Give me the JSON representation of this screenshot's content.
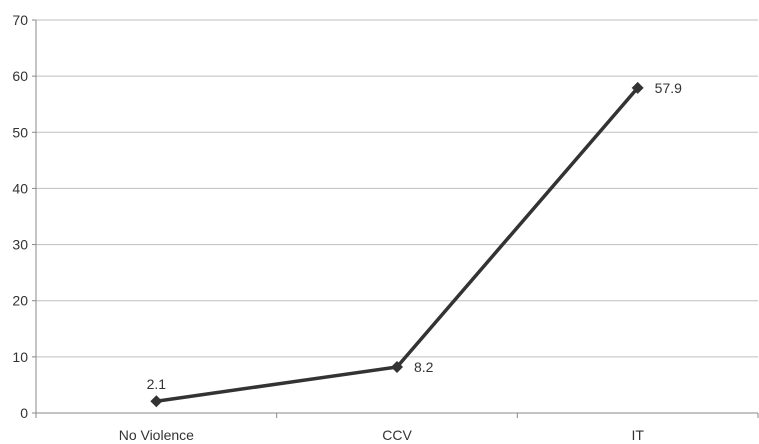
{
  "chart_data": {
    "type": "line",
    "categories": [
      "No Violence",
      "CCV",
      "IT"
    ],
    "series": [
      {
        "values": [
          2.1,
          8.2,
          57.9
        ],
        "data_labels": [
          "2.1",
          "8.2",
          "57.9"
        ]
      }
    ],
    "ylim": [
      0,
      70
    ],
    "yticks": [
      0,
      10,
      20,
      30,
      40,
      50,
      60,
      70
    ],
    "ytick_labels": [
      "0",
      "10",
      "20",
      "30",
      "40",
      "50",
      "60",
      "70"
    ],
    "grid": true,
    "legend": false,
    "line_color": "#333333",
    "marker": "diamond",
    "gridline_color": "#bfbfbf",
    "title": "",
    "xlabel": "",
    "ylabel": ""
  }
}
